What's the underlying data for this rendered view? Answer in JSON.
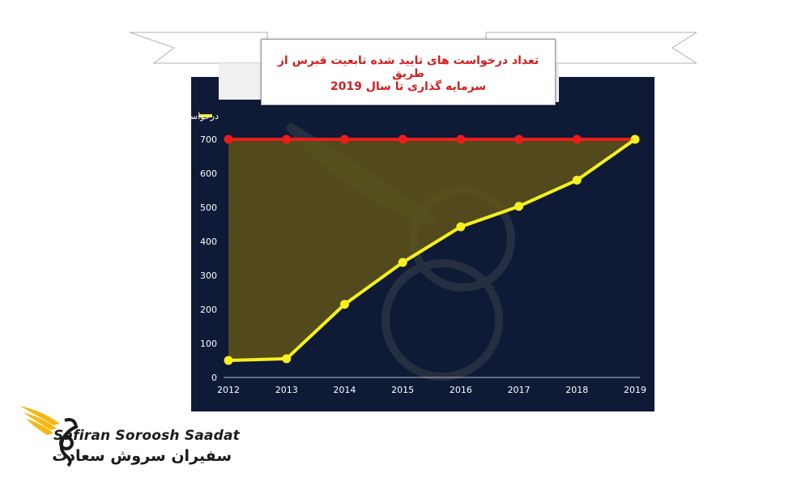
{
  "title": {
    "line1": "تعداد درخواست های تایید شده تابعیت قبرس از طریق",
    "line2": "سرمایه گذاری تا سال 2019"
  },
  "brand": {
    "name_en": "Safiran Soroosh Saadat",
    "name_fa": "سفیران سروش سعادت"
  },
  "colors": {
    "panel_bg": "#0e1a36",
    "yellow_series": "#f5f01e",
    "red_series": "#ee1c1c",
    "area_fill": "#5e5418",
    "title_text": "#d21f1f",
    "axis_text": "#ffffff",
    "logo_gold": "#f3b815"
  },
  "chart_data": {
    "type": "line",
    "x": [
      2012,
      2013,
      2014,
      2015,
      2016,
      2017,
      2018,
      2019
    ],
    "xticks": [
      "2012",
      "2013",
      "2014",
      "2015",
      "2016",
      "2017",
      "2018",
      "2019"
    ],
    "yticks": [
      "0",
      "100",
      "200",
      "300",
      "400",
      "500",
      "600",
      "700"
    ],
    "ylim": [
      0,
      720
    ],
    "grid": false,
    "legend_position": "top-left",
    "series": [
      {
        "name": "درخواست های CIP مورد تایید در هر سال",
        "color": "#f5f01e",
        "values": [
          50,
          55,
          215,
          338,
          443,
          503,
          580,
          700
        ]
      },
      {
        "name": "",
        "color": "#ee1c1c",
        "values": [
          700,
          700,
          700,
          700,
          700,
          700,
          700,
          700
        ]
      }
    ]
  }
}
